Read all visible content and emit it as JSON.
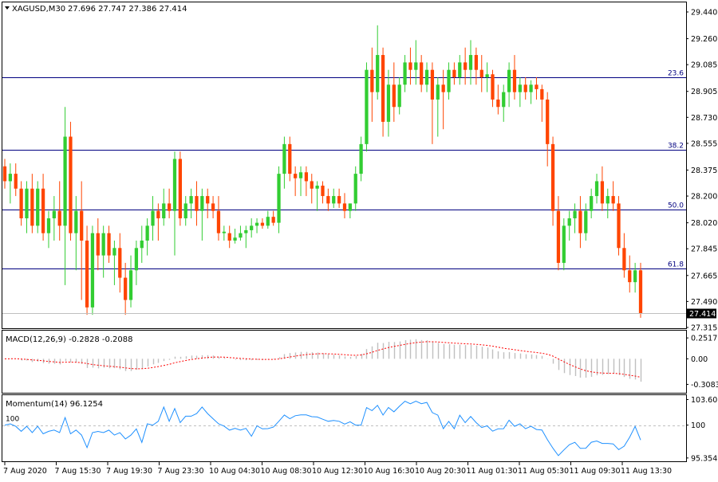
{
  "main": {
    "symbol": "XAGUSD,M30",
    "ohlc": "27.696 27.747 27.386 27.414",
    "last_price": "27.414"
  },
  "macd": {
    "label": "MACD(12,26,9) -0.2828 -0.2088"
  },
  "momentum": {
    "label": "Momentum(14) 96.1254"
  },
  "colors": {
    "bull": "#32cd32",
    "bear": "#ff4500",
    "wick": "#000000",
    "fib": "#000080",
    "signal": "#ff0000",
    "momentum": "#1e90ff",
    "hist": "#c0c0c0"
  },
  "chart_data": [
    {
      "type": "candlestick",
      "title": "XAGUSD,M30",
      "y_ticks": [
        "29.440",
        "29.260",
        "29.085",
        "28.905",
        "28.730",
        "28.555",
        "28.375",
        "28.200",
        "28.020",
        "27.845",
        "27.665",
        "27.490",
        "27.315"
      ],
      "ylim": [
        27.28,
        29.5
      ],
      "x_ticks": [
        "7 Aug 2020",
        "7 Aug 15:30",
        "7 Aug 19:30",
        "7 Aug 23:30",
        "10 Aug 04:30",
        "10 Aug 08:30",
        "10 Aug 12:30",
        "10 Aug 16:30",
        "10 Aug 20:30",
        "11 Aug 01:30",
        "11 Aug 05:30",
        "11 Aug 09:30",
        "11 Aug 13:30"
      ],
      "fib_levels": [
        {
          "label": "23.6",
          "value": 29.0
        },
        {
          "label": "38.2",
          "value": 28.51
        },
        {
          "label": "50.0",
          "value": 28.11
        },
        {
          "label": "61.8",
          "value": 27.71
        }
      ],
      "last_price": 27.414,
      "ohlc": [
        [
          28.4,
          28.45,
          28.25,
          28.3
        ],
        [
          28.3,
          28.42,
          28.15,
          28.35
        ],
        [
          28.35,
          28.42,
          28.2,
          28.25
        ],
        [
          28.25,
          28.3,
          28.0,
          28.05
        ],
        [
          28.05,
          28.3,
          27.95,
          28.25
        ],
        [
          28.25,
          28.35,
          27.95,
          28.0
        ],
        [
          28.0,
          28.3,
          27.95,
          28.25
        ],
        [
          28.25,
          28.35,
          27.9,
          27.95
        ],
        [
          27.95,
          28.1,
          27.85,
          28.05
        ],
        [
          28.05,
          28.2,
          27.9,
          28.1
        ],
        [
          28.1,
          28.3,
          27.9,
          28.0
        ],
        [
          28.0,
          28.8,
          27.6,
          28.6
        ],
        [
          28.6,
          28.7,
          27.9,
          27.95
        ],
        [
          27.95,
          28.2,
          27.7,
          28.1
        ],
        [
          28.1,
          28.3,
          27.5,
          27.9
        ],
        [
          27.9,
          28.0,
          27.4,
          27.45
        ],
        [
          27.45,
          28.0,
          27.4,
          27.95
        ],
        [
          27.95,
          28.05,
          27.7,
          27.8
        ],
        [
          27.8,
          28.0,
          27.65,
          27.95
        ],
        [
          27.95,
          28.0,
          27.75,
          27.8
        ],
        [
          27.8,
          27.9,
          27.6,
          27.85
        ],
        [
          27.85,
          27.95,
          27.55,
          27.65
        ],
        [
          27.65,
          27.75,
          27.4,
          27.5
        ],
        [
          27.5,
          27.8,
          27.45,
          27.7
        ],
        [
          27.7,
          27.9,
          27.6,
          27.85
        ],
        [
          27.85,
          28.0,
          27.75,
          27.9
        ],
        [
          27.9,
          28.05,
          27.8,
          28.0
        ],
        [
          28.0,
          28.2,
          27.9,
          28.1
        ],
        [
          28.1,
          28.15,
          27.9,
          28.05
        ],
        [
          28.05,
          28.25,
          28.0,
          28.15
        ],
        [
          28.15,
          28.25,
          28.05,
          28.1
        ],
        [
          28.1,
          28.5,
          27.8,
          28.45
        ],
        [
          28.45,
          28.5,
          28.0,
          28.05
        ],
        [
          28.05,
          28.2,
          28.0,
          28.15
        ],
        [
          28.15,
          28.25,
          28.05,
          28.2
        ],
        [
          28.2,
          28.3,
          28.0,
          28.1
        ],
        [
          28.1,
          28.25,
          27.9,
          28.2
        ],
        [
          28.2,
          28.25,
          28.05,
          28.15
        ],
        [
          28.15,
          28.2,
          28.05,
          28.1
        ],
        [
          28.1,
          28.2,
          27.9,
          27.95
        ],
        [
          27.95,
          28.0,
          27.9,
          27.96
        ],
        [
          27.95,
          28.0,
          27.85,
          27.9
        ],
        [
          27.9,
          27.98,
          27.88,
          27.92
        ],
        [
          27.92,
          28.0,
          27.9,
          27.95
        ],
        [
          27.95,
          28.0,
          27.85,
          27.97
        ],
        [
          27.97,
          28.05,
          27.92,
          28.0
        ],
        [
          28.0,
          28.05,
          27.95,
          28.02
        ],
        [
          28.02,
          28.05,
          27.98,
          28.0
        ],
        [
          28.0,
          28.1,
          27.98,
          28.06
        ],
        [
          28.06,
          28.1,
          28.0,
          28.02
        ],
        [
          28.02,
          28.4,
          27.95,
          28.35
        ],
        [
          28.35,
          28.6,
          28.25,
          28.55
        ],
        [
          28.55,
          28.6,
          28.3,
          28.35
        ],
        [
          28.35,
          28.4,
          28.2,
          28.32
        ],
        [
          28.32,
          28.4,
          28.2,
          28.36
        ],
        [
          28.36,
          28.4,
          28.2,
          28.3
        ],
        [
          28.3,
          28.35,
          28.15,
          28.25
        ],
        [
          28.25,
          28.3,
          28.1,
          28.27
        ],
        [
          28.27,
          28.3,
          28.15,
          28.2
        ],
        [
          28.2,
          28.25,
          28.1,
          28.15
        ],
        [
          28.15,
          28.25,
          28.12,
          28.2
        ],
        [
          28.2,
          28.25,
          28.12,
          28.15
        ],
        [
          28.15,
          28.22,
          28.05,
          28.1
        ],
        [
          28.1,
          28.15,
          28.05,
          28.15
        ],
        [
          28.15,
          28.4,
          28.1,
          28.35
        ],
        [
          28.35,
          28.6,
          28.3,
          28.55
        ],
        [
          28.55,
          29.1,
          28.5,
          29.05
        ],
        [
          29.05,
          29.2,
          28.7,
          28.9
        ],
        [
          28.9,
          29.35,
          28.85,
          29.15
        ],
        [
          29.15,
          29.2,
          28.6,
          28.7
        ],
        [
          28.7,
          29.05,
          28.6,
          28.95
        ],
        [
          28.95,
          29.1,
          28.7,
          28.8
        ],
        [
          28.8,
          29.0,
          28.75,
          28.95
        ],
        [
          28.95,
          29.15,
          28.9,
          29.1
        ],
        [
          29.1,
          29.2,
          28.95,
          29.05
        ],
        [
          29.05,
          29.25,
          28.95,
          29.1
        ],
        [
          29.1,
          29.15,
          28.9,
          28.95
        ],
        [
          28.95,
          29.1,
          28.9,
          29.05
        ],
        [
          29.05,
          29.1,
          28.55,
          28.85
        ],
        [
          28.85,
          29.0,
          28.6,
          28.95
        ],
        [
          28.95,
          29.05,
          28.65,
          28.9
        ],
        [
          28.9,
          29.1,
          28.85,
          29.05
        ],
        [
          29.05,
          29.1,
          28.95,
          29.0
        ],
        [
          29.0,
          29.15,
          28.95,
          29.1
        ],
        [
          29.1,
          29.2,
          28.95,
          29.05
        ],
        [
          29.05,
          29.25,
          28.95,
          29.15
        ],
        [
          29.15,
          29.2,
          28.95,
          29.05
        ],
        [
          29.05,
          29.15,
          28.9,
          29.0
        ],
        [
          29.0,
          29.1,
          28.9,
          29.02
        ],
        [
          29.02,
          29.05,
          28.8,
          28.85
        ],
        [
          28.85,
          28.95,
          28.75,
          28.8
        ],
        [
          28.8,
          28.95,
          28.7,
          28.9
        ],
        [
          28.9,
          29.1,
          28.8,
          29.05
        ],
        [
          29.05,
          29.15,
          28.85,
          28.9
        ],
        [
          28.9,
          29.0,
          28.8,
          28.95
        ],
        [
          28.95,
          29.0,
          28.85,
          28.9
        ],
        [
          28.9,
          28.98,
          28.82,
          28.95
        ],
        [
          28.95,
          29.0,
          28.85,
          28.92
        ],
        [
          28.92,
          28.95,
          28.7,
          28.85
        ],
        [
          28.85,
          28.9,
          28.4,
          28.55
        ],
        [
          28.55,
          28.6,
          28.0,
          28.1
        ],
        [
          28.1,
          28.2,
          27.7,
          27.75
        ],
        [
          27.75,
          28.05,
          27.7,
          28.0
        ],
        [
          28.0,
          28.1,
          27.9,
          28.05
        ],
        [
          28.05,
          28.15,
          27.95,
          28.1
        ],
        [
          28.1,
          28.2,
          27.85,
          27.95
        ],
        [
          27.95,
          28.15,
          27.9,
          28.1
        ],
        [
          28.1,
          28.25,
          28.05,
          28.2
        ],
        [
          28.2,
          28.35,
          28.15,
          28.3
        ],
        [
          28.3,
          28.4,
          28.1,
          28.15
        ],
        [
          28.15,
          28.25,
          28.05,
          28.2
        ],
        [
          28.2,
          28.3,
          28.1,
          28.15
        ],
        [
          28.15,
          28.2,
          27.8,
          27.85
        ],
        [
          27.85,
          27.95,
          27.65,
          27.7
        ],
        [
          27.7,
          27.8,
          27.55,
          27.62
        ],
        [
          27.62,
          27.75,
          27.55,
          27.7
        ],
        [
          27.7,
          27.75,
          27.38,
          27.41
        ]
      ]
    },
    {
      "type": "bar",
      "title": "MACD(12,26,9)",
      "series_names": [
        "MACD",
        "Signal"
      ],
      "macd_value": -0.2828,
      "signal_value": -0.2088,
      "y_ticks": [
        "0.2517",
        "0.00",
        "-0.3083"
      ],
      "ylim": [
        -0.4,
        0.33
      ]
    },
    {
      "type": "line",
      "title": "Momentum(14)",
      "last_value": 96.1254,
      "y_ticks": [
        "103.6071",
        "100",
        "95.3546"
      ],
      "ylim": [
        95.0,
        104.0
      ],
      "reference_level": 100
    }
  ]
}
